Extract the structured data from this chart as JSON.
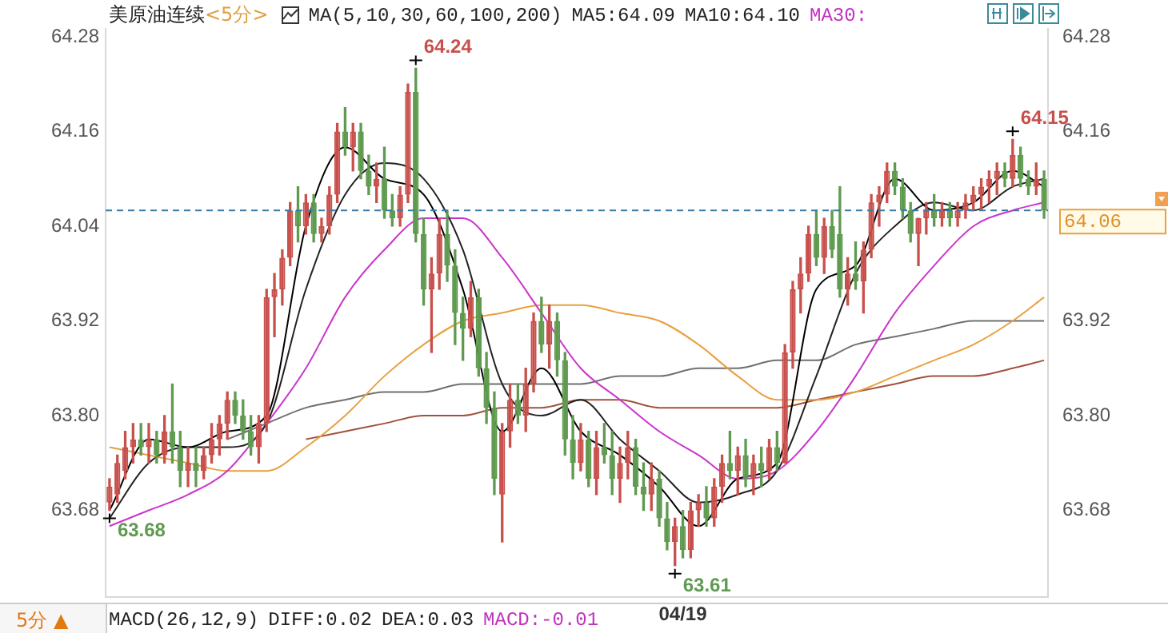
{
  "chart_data": {
    "type": "candlestick",
    "title": "美原油连续",
    "subtitle": "<5分>",
    "categories": [
      null,
      null,
      null,
      null,
      null,
      null,
      null,
      null,
      null,
      null,
      null,
      null,
      null,
      null,
      null,
      null,
      null,
      null,
      null,
      null,
      null,
      null,
      null,
      null,
      null,
      null,
      null,
      null,
      null,
      null,
      null,
      null,
      null,
      null,
      null,
      null,
      null,
      null,
      null,
      null,
      null,
      null,
      null,
      null,
      null,
      null,
      null,
      null,
      null,
      null,
      null,
      null,
      null,
      null,
      null,
      null,
      null,
      null,
      null,
      null,
      null,
      null,
      null,
      null,
      null,
      null,
      null,
      null,
      null,
      null,
      null,
      null,
      null,
      "04/19",
      null,
      null,
      null,
      null,
      null,
      null,
      null,
      null,
      null,
      null,
      null,
      null,
      null,
      null,
      null,
      null,
      null,
      null,
      null,
      null,
      null,
      null,
      null,
      null,
      null,
      null,
      null,
      null,
      null,
      null,
      null,
      null,
      null,
      null,
      null,
      null,
      null,
      null,
      null,
      null,
      null,
      null,
      null,
      null,
      null,
      null
    ],
    "ohlc": [
      [
        63.69,
        63.72,
        63.68,
        63.71
      ],
      [
        63.7,
        63.75,
        63.69,
        63.74
      ],
      [
        63.73,
        63.78,
        63.72,
        63.76
      ],
      [
        63.76,
        63.79,
        63.74,
        63.77
      ],
      [
        63.77,
        63.79,
        63.75,
        63.76
      ],
      [
        63.76,
        63.79,
        63.74,
        63.77
      ],
      [
        63.77,
        63.78,
        63.74,
        63.75
      ],
      [
        63.75,
        63.8,
        63.74,
        63.78
      ],
      [
        63.78,
        63.84,
        63.74,
        63.76
      ],
      [
        63.76,
        63.78,
        63.71,
        63.73
      ],
      [
        63.73,
        63.76,
        63.71,
        63.74
      ],
      [
        63.74,
        63.76,
        63.71,
        63.73
      ],
      [
        63.73,
        63.76,
        63.72,
        63.75
      ],
      [
        63.75,
        63.79,
        63.74,
        63.77
      ],
      [
        63.77,
        63.8,
        63.75,
        63.79
      ],
      [
        63.79,
        63.83,
        63.77,
        63.82
      ],
      [
        63.82,
        63.83,
        63.79,
        63.8
      ],
      [
        63.8,
        63.82,
        63.77,
        63.78
      ],
      [
        63.78,
        63.8,
        63.75,
        63.76
      ],
      [
        63.76,
        63.8,
        63.74,
        63.79
      ],
      [
        63.79,
        63.96,
        63.78,
        63.95
      ],
      [
        63.95,
        63.98,
        63.9,
        63.96
      ],
      [
        63.96,
        64.01,
        63.94,
        64.0
      ],
      [
        64.0,
        64.07,
        63.99,
        64.06
      ],
      [
        64.06,
        64.09,
        64.02,
        64.04
      ],
      [
        64.04,
        64.08,
        64.03,
        64.07
      ],
      [
        64.07,
        64.08,
        64.02,
        64.03
      ],
      [
        64.03,
        64.05,
        64.02,
        64.04
      ],
      [
        64.04,
        64.09,
        64.03,
        64.08
      ],
      [
        64.08,
        64.17,
        64.07,
        64.16
      ],
      [
        64.16,
        64.19,
        64.13,
        64.14
      ],
      [
        64.14,
        64.17,
        64.11,
        64.16
      ],
      [
        64.16,
        64.17,
        64.1,
        64.11
      ],
      [
        64.11,
        64.13,
        64.08,
        64.09
      ],
      [
        64.09,
        64.12,
        64.07,
        64.1
      ],
      [
        64.1,
        64.14,
        64.05,
        64.06
      ],
      [
        64.06,
        64.08,
        64.04,
        64.05
      ],
      [
        64.05,
        64.09,
        64.04,
        64.08
      ],
      [
        64.08,
        64.22,
        64.07,
        64.21
      ],
      [
        64.21,
        64.24,
        64.02,
        64.03
      ],
      [
        64.03,
        64.05,
        63.94,
        63.96
      ],
      [
        63.96,
        64.0,
        63.88,
        63.98
      ],
      [
        63.98,
        64.05,
        63.96,
        64.03
      ],
      [
        64.03,
        64.06,
        63.97,
        63.99
      ],
      [
        63.99,
        64.01,
        63.89,
        63.93
      ],
      [
        63.93,
        63.95,
        63.87,
        63.91
      ],
      [
        63.91,
        63.97,
        63.9,
        63.95
      ],
      [
        63.95,
        63.96,
        63.85,
        63.86
      ],
      [
        63.86,
        63.88,
        63.79,
        63.81
      ],
      [
        63.81,
        63.83,
        63.7,
        63.72
      ],
      [
        63.7,
        63.79,
        63.64,
        63.78
      ],
      [
        63.78,
        63.84,
        63.76,
        63.82
      ],
      [
        63.82,
        63.84,
        63.79,
        63.8
      ],
      [
        63.8,
        63.86,
        63.78,
        63.84
      ],
      [
        63.84,
        63.93,
        63.83,
        63.92
      ],
      [
        63.92,
        63.95,
        63.88,
        63.89
      ],
      [
        63.89,
        63.94,
        63.86,
        63.92
      ],
      [
        63.92,
        63.93,
        63.85,
        63.87
      ],
      [
        63.87,
        63.88,
        63.75,
        63.77
      ],
      [
        63.77,
        63.8,
        63.72,
        63.74
      ],
      [
        63.74,
        63.79,
        63.73,
        63.77
      ],
      [
        63.77,
        63.78,
        63.71,
        63.72
      ],
      [
        63.72,
        63.78,
        63.7,
        63.76
      ],
      [
        63.76,
        63.79,
        63.74,
        63.75
      ],
      [
        63.75,
        63.78,
        63.7,
        63.72
      ],
      [
        63.72,
        63.76,
        63.69,
        63.74
      ],
      [
        63.74,
        63.78,
        63.72,
        63.76
      ],
      [
        63.76,
        63.77,
        63.7,
        63.71
      ],
      [
        63.71,
        63.74,
        63.68,
        63.7
      ],
      [
        63.7,
        63.74,
        63.68,
        63.72
      ],
      [
        63.72,
        63.73,
        63.66,
        63.67
      ],
      [
        63.67,
        63.69,
        63.63,
        63.64
      ],
      [
        63.64,
        63.67,
        63.61,
        63.66
      ],
      [
        63.66,
        63.68,
        63.62,
        63.63
      ],
      [
        63.63,
        63.69,
        63.62,
        63.68
      ],
      [
        63.68,
        63.7,
        63.66,
        63.69
      ],
      [
        63.69,
        63.71,
        63.66,
        63.67
      ],
      [
        63.67,
        63.72,
        63.66,
        63.71
      ],
      [
        63.71,
        63.75,
        63.69,
        63.74
      ],
      [
        63.74,
        63.78,
        63.72,
        63.73
      ],
      [
        63.73,
        63.76,
        63.7,
        63.75
      ],
      [
        63.75,
        63.77,
        63.71,
        63.72
      ],
      [
        63.72,
        63.75,
        63.7,
        63.74
      ],
      [
        63.74,
        63.76,
        63.71,
        63.73
      ],
      [
        63.73,
        63.77,
        63.72,
        63.76
      ],
      [
        63.76,
        63.78,
        63.73,
        63.74
      ],
      [
        63.74,
        63.89,
        63.74,
        63.88
      ],
      [
        63.88,
        63.97,
        63.86,
        63.96
      ],
      [
        63.96,
        64.0,
        63.93,
        63.98
      ],
      [
        63.98,
        64.04,
        63.97,
        64.03
      ],
      [
        64.03,
        64.06,
        63.99,
        64.0
      ],
      [
        64.0,
        64.05,
        63.98,
        64.04
      ],
      [
        64.04,
        64.06,
        64.0,
        64.01
      ],
      [
        64.03,
        64.09,
        63.95,
        63.96
      ],
      [
        63.96,
        64.0,
        63.94,
        63.98
      ],
      [
        63.98,
        64.02,
        63.96,
        63.97
      ],
      [
        63.97,
        64.02,
        63.93,
        64.01
      ],
      [
        64.01,
        64.08,
        64.0,
        64.07
      ],
      [
        64.07,
        64.09,
        64.04,
        64.08
      ],
      [
        64.08,
        64.12,
        64.07,
        64.11
      ],
      [
        64.11,
        64.12,
        64.08,
        64.09
      ],
      [
        64.09,
        64.1,
        64.05,
        64.06
      ],
      [
        64.06,
        64.07,
        64.02,
        64.03
      ],
      [
        64.03,
        64.05,
        63.99,
        64.05
      ],
      [
        64.05,
        64.07,
        64.03,
        64.06
      ],
      [
        64.06,
        64.08,
        64.04,
        64.05
      ],
      [
        64.05,
        64.07,
        64.04,
        64.06
      ],
      [
        64.06,
        64.07,
        64.04,
        64.05
      ],
      [
        64.05,
        64.07,
        64.04,
        64.06
      ],
      [
        64.06,
        64.08,
        64.05,
        64.07
      ],
      [
        64.07,
        64.09,
        64.06,
        64.08
      ],
      [
        64.08,
        64.1,
        64.06,
        64.09
      ],
      [
        64.09,
        64.11,
        64.07,
        64.1
      ],
      [
        64.1,
        64.12,
        64.08,
        64.11
      ],
      [
        64.11,
        64.12,
        64.09,
        64.1
      ],
      [
        64.1,
        64.15,
        64.09,
        64.13
      ],
      [
        64.13,
        64.14,
        64.09,
        64.1
      ],
      [
        64.1,
        64.11,
        64.08,
        64.09
      ],
      [
        64.09,
        64.12,
        64.08,
        64.1
      ],
      [
        64.1,
        64.11,
        64.05,
        64.06
      ]
    ],
    "series": [
      {
        "type": "line",
        "color": "#000000",
        "values": [
          63.68,
          null,
          null,
          null,
          null,
          63.77,
          null,
          null,
          null,
          null,
          63.76,
          null,
          null,
          null,
          null,
          63.78,
          null,
          null,
          null,
          null,
          63.8,
          null,
          null,
          null,
          null,
          64.04,
          null,
          null,
          null,
          null,
          64.14,
          null,
          null,
          null,
          null,
          64.1,
          null,
          null,
          null,
          null,
          64.08,
          null,
          null,
          null,
          null,
          63.96,
          null,
          null,
          null,
          null,
          63.78,
          null,
          null,
          null,
          null,
          63.86,
          null,
          null,
          null,
          null,
          63.78,
          null,
          null,
          null,
          null,
          63.75,
          null,
          null,
          null,
          null,
          63.71,
          null,
          null,
          null,
          null,
          63.66,
          null,
          null,
          null,
          null,
          63.72,
          null,
          null,
          null,
          null,
          63.74,
          null,
          null,
          null,
          null,
          63.96,
          null,
          null,
          null,
          null,
          63.99,
          null,
          null,
          null,
          null,
          64.1,
          null,
          null,
          null,
          null,
          64.06,
          null,
          null,
          null,
          null,
          64.07,
          null,
          null,
          null,
          null,
          64.11,
          null,
          null,
          null,
          64.09
        ]
      },
      {
        "type": "line",
        "color": "#222222",
        "values": [
          63.67,
          null,
          null,
          null,
          null,
          63.74,
          null,
          null,
          null,
          null,
          63.76,
          null,
          null,
          null,
          null,
          63.76,
          null,
          null,
          null,
          null,
          63.79,
          null,
          null,
          null,
          null,
          63.96,
          null,
          null,
          null,
          null,
          64.08,
          null,
          null,
          null,
          null,
          64.12,
          null,
          null,
          null,
          null,
          64.1,
          null,
          null,
          null,
          null,
          64.01,
          null,
          null,
          null,
          null,
          63.84,
          null,
          null,
          null,
          null,
          63.8,
          null,
          null,
          null,
          null,
          63.82,
          null,
          null,
          null,
          null,
          63.77,
          null,
          null,
          null,
          null,
          63.73,
          null,
          null,
          null,
          null,
          63.69,
          null,
          null,
          null,
          null,
          63.7,
          null,
          null,
          null,
          null,
          63.73,
          null,
          null,
          null,
          null,
          63.85,
          null,
          null,
          null,
          null,
          63.98,
          null,
          null,
          null,
          null,
          64.04,
          null,
          null,
          null,
          null,
          64.07,
          null,
          null,
          null,
          null,
          64.06,
          null,
          null,
          null,
          null,
          64.09,
          null,
          null,
          null,
          64.1
        ]
      },
      {
        "type": "line",
        "color": "#cc33cc",
        "values": [
          63.66,
          null,
          null,
          null,
          null,
          63.68,
          null,
          null,
          null,
          null,
          63.7,
          null,
          null,
          null,
          null,
          63.73,
          null,
          null,
          null,
          null,
          63.79,
          null,
          null,
          null,
          null,
          63.86,
          null,
          null,
          null,
          null,
          63.95,
          null,
          null,
          null,
          null,
          64.01,
          null,
          null,
          null,
          null,
          64.05,
          null,
          null,
          null,
          null,
          64.05,
          null,
          null,
          null,
          null,
          64.0,
          null,
          null,
          null,
          null,
          63.93,
          null,
          null,
          null,
          null,
          63.86,
          null,
          null,
          null,
          null,
          63.82,
          null,
          null,
          null,
          null,
          63.78,
          null,
          null,
          null,
          null,
          63.75,
          null,
          null,
          null,
          null,
          63.72,
          null,
          null,
          null,
          null,
          63.73,
          null,
          null,
          null,
          null,
          63.78,
          null,
          null,
          null,
          null,
          63.85,
          null,
          null,
          null,
          null,
          63.93,
          null,
          null,
          null,
          null,
          63.99,
          null,
          null,
          null,
          null,
          64.04,
          null,
          null,
          null,
          null,
          64.06,
          null,
          null,
          null,
          64.07
        ]
      },
      {
        "type": "line",
        "color": "#e8a040",
        "values": [
          63.76,
          null,
          null,
          null,
          null,
          63.75,
          null,
          null,
          null,
          null,
          63.74,
          null,
          null,
          null,
          null,
          63.73,
          null,
          null,
          null,
          null,
          63.73,
          null,
          null,
          null,
          null,
          63.76,
          null,
          null,
          null,
          null,
          63.8,
          null,
          null,
          null,
          null,
          63.85,
          null,
          null,
          null,
          null,
          63.89,
          null,
          null,
          null,
          null,
          63.92,
          null,
          null,
          null,
          null,
          63.93,
          null,
          null,
          null,
          null,
          63.94,
          null,
          null,
          null,
          null,
          63.94,
          null,
          null,
          null,
          null,
          63.93,
          null,
          null,
          null,
          null,
          63.92,
          null,
          null,
          null,
          null,
          63.89,
          null,
          null,
          null,
          null,
          63.85,
          null,
          null,
          null,
          null,
          63.82,
          null,
          null,
          null,
          null,
          63.82,
          null,
          null,
          null,
          null,
          63.83,
          null,
          null,
          null,
          null,
          63.85,
          null,
          null,
          null,
          null,
          63.87,
          null,
          null,
          null,
          null,
          63.89,
          null,
          null,
          null,
          null,
          63.92,
          null,
          null,
          null,
          63.95
        ]
      },
      {
        "type": "line",
        "color": "#707070",
        "values": [
          null,
          null,
          null,
          null,
          null,
          null,
          null,
          null,
          null,
          null,
          null,
          null,
          null,
          null,
          null,
          63.77,
          null,
          null,
          null,
          null,
          63.79,
          null,
          null,
          null,
          null,
          63.81,
          null,
          null,
          null,
          null,
          63.82,
          null,
          null,
          null,
          null,
          63.83,
          null,
          null,
          null,
          null,
          63.83,
          null,
          null,
          null,
          null,
          63.84,
          null,
          null,
          null,
          null,
          63.84,
          null,
          null,
          null,
          null,
          63.84,
          null,
          null,
          null,
          null,
          63.84,
          null,
          null,
          null,
          null,
          63.85,
          null,
          null,
          null,
          null,
          63.85,
          null,
          null,
          null,
          null,
          63.86,
          null,
          null,
          null,
          null,
          63.86,
          null,
          null,
          null,
          null,
          63.87,
          null,
          null,
          null,
          null,
          63.87,
          null,
          null,
          null,
          null,
          63.89,
          null,
          null,
          null,
          null,
          63.9,
          null,
          null,
          null,
          null,
          63.91,
          null,
          null,
          null,
          null,
          63.92,
          null,
          null,
          null,
          null,
          63.92,
          null,
          null,
          null,
          63.92
        ]
      },
      {
        "type": "line",
        "color": "#a0523c",
        "values": [
          null,
          null,
          null,
          null,
          null,
          null,
          null,
          null,
          null,
          null,
          null,
          null,
          null,
          null,
          null,
          null,
          null,
          null,
          null,
          null,
          null,
          null,
          null,
          null,
          null,
          63.77,
          null,
          null,
          null,
          null,
          63.78,
          null,
          null,
          null,
          null,
          63.79,
          null,
          null,
          null,
          null,
          63.8,
          null,
          null,
          null,
          null,
          63.8,
          null,
          null,
          null,
          null,
          63.81,
          null,
          null,
          null,
          null,
          63.81,
          null,
          null,
          null,
          null,
          63.82,
          null,
          null,
          null,
          null,
          63.82,
          null,
          null,
          null,
          null,
          63.81,
          null,
          null,
          null,
          null,
          63.81,
          null,
          null,
          null,
          null,
          63.81,
          null,
          null,
          null,
          null,
          63.81,
          null,
          null,
          null,
          null,
          63.82,
          null,
          null,
          null,
          null,
          63.83,
          null,
          null,
          null,
          null,
          63.84,
          null,
          null,
          null,
          null,
          63.85,
          null,
          null,
          null,
          null,
          63.85,
          null,
          null,
          null,
          null,
          63.86,
          null,
          null,
          null,
          63.87
        ]
      }
    ],
    "ylim": [
      63.57,
      64.29
    ],
    "yticks": [
      63.68,
      {
        "value": 63.8,
        "label": "63.80"
      },
      63.92,
      64.04,
      64.16,
      64.28
    ],
    "y2lim": [
      63.57,
      64.29
    ],
    "y2ticks": [
      63.68,
      {
        "value": 63.8,
        "label": "63.80"
      },
      63.92,
      64.16,
      64.28
    ],
    "ref_lines": [
      {
        "axis": "y2",
        "value": 64.06,
        "label": "64.06",
        "color": "#3a7ca5",
        "line_style": "dashed"
      }
    ],
    "annotations": [
      "MA(5,10,30,60,100,200)",
      "MA5:64.09",
      "MA10:64.10",
      "MA30:",
      "5分 ▲",
      "MACD(26,12,9)",
      "DIFF:0.02",
      "DEA:0.03",
      "MACD:-0.01",
      "64.24",
      "63.61",
      "63.68",
      "64.15"
    ],
    "legend": false
  }
}
